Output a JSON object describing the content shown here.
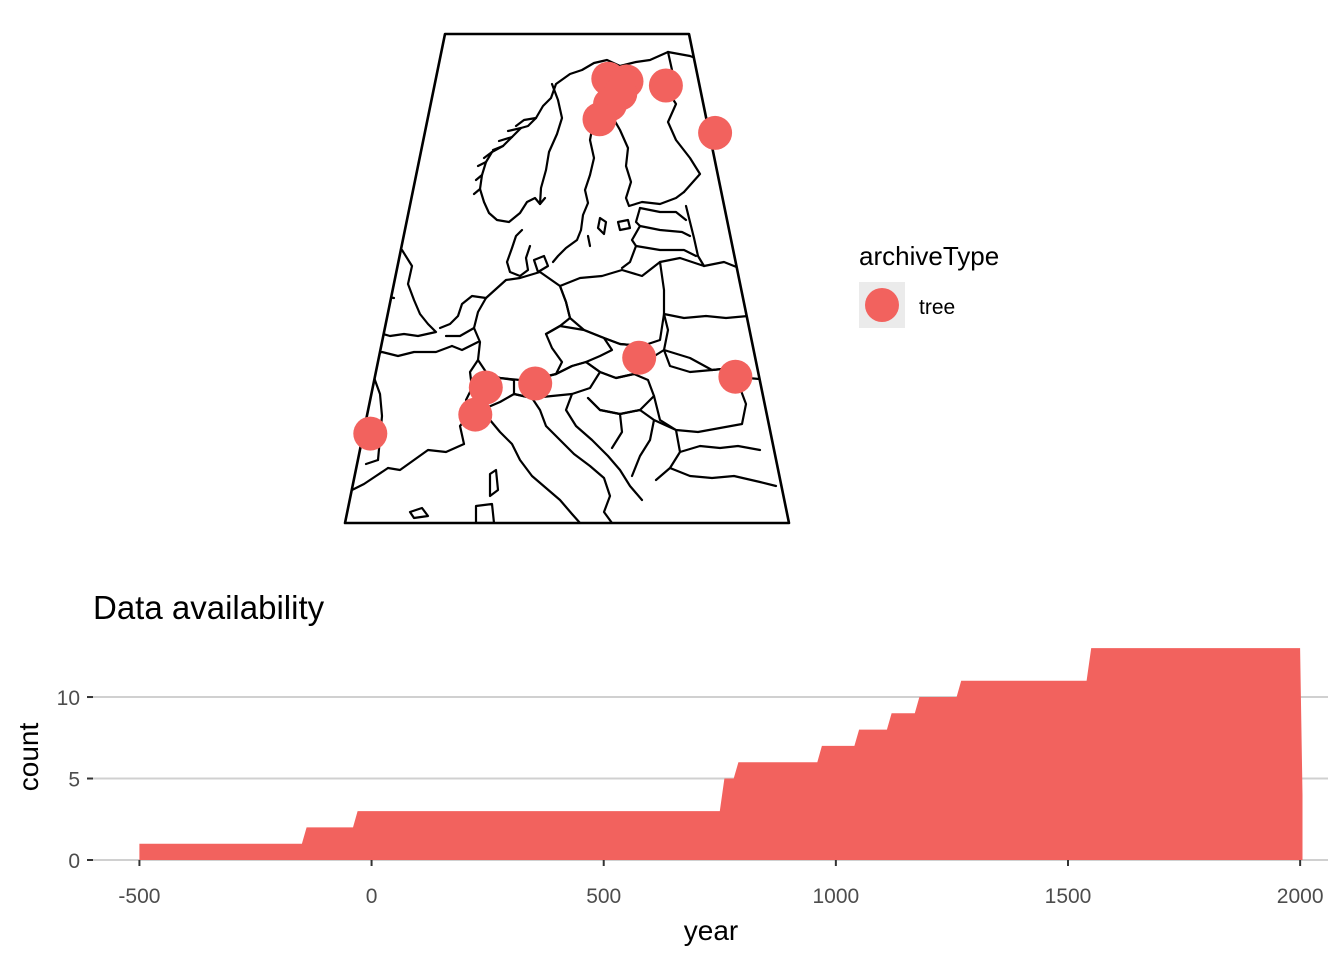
{
  "colors": {
    "accent": "#F2625E",
    "grid": "#D0D0D0",
    "map_line": "#000000",
    "legend_key_bg": "#EBEBEB",
    "axis_text": "#4D4D4D"
  },
  "map": {
    "legend": {
      "title": "archiveType",
      "items": [
        {
          "label": "tree"
        }
      ]
    },
    "sites": [
      {
        "lon": 18.5,
        "lat": 69.4
      },
      {
        "lon": 20.5,
        "lat": 69.2
      },
      {
        "lon": 24.8,
        "lat": 68.9
      },
      {
        "lon": 19.7,
        "lat": 68.3
      },
      {
        "lon": 18.5,
        "lat": 67.5
      },
      {
        "lon": 17.3,
        "lat": 66.4
      },
      {
        "lon": 29.1,
        "lat": 65.4
      },
      {
        "lon": 19.5,
        "lat": 48.8
      },
      {
        "lon": 26.7,
        "lat": 47.4
      },
      {
        "lon": 11.5,
        "lat": 46.9
      },
      {
        "lon": 7.8,
        "lat": 46.6
      },
      {
        "lon": 7.2,
        "lat": 44.6
      },
      {
        "lon": -0.2,
        "lat": 43.2
      }
    ]
  },
  "chart_data": {
    "type": "area",
    "title": "Data availability",
    "xlabel": "year",
    "ylabel": "count",
    "xlim": [
      -600,
      2060
    ],
    "ylim": [
      0,
      13.5
    ],
    "x_ticks": [
      -500,
      0,
      500,
      1000,
      1500,
      2000
    ],
    "x_tick_labels": [
      "-500",
      "0",
      "500",
      "1000",
      "1500",
      "2000"
    ],
    "y_ticks": [
      0,
      5,
      10
    ],
    "y_tick_labels": [
      "0",
      "5",
      "10"
    ],
    "grid": true,
    "legend": "none",
    "x": [
      -500,
      -150,
      -140,
      -40,
      -30,
      750,
      760,
      780,
      790,
      960,
      970,
      1040,
      1050,
      1110,
      1120,
      1170,
      1180,
      1260,
      1270,
      1540,
      1550,
      2000,
      2005
    ],
    "values": [
      1,
      1,
      2,
      2,
      3,
      3,
      5,
      5,
      6,
      6,
      7,
      7,
      8,
      8,
      9,
      9,
      10,
      10,
      11,
      11,
      13,
      13,
      4
    ]
  }
}
